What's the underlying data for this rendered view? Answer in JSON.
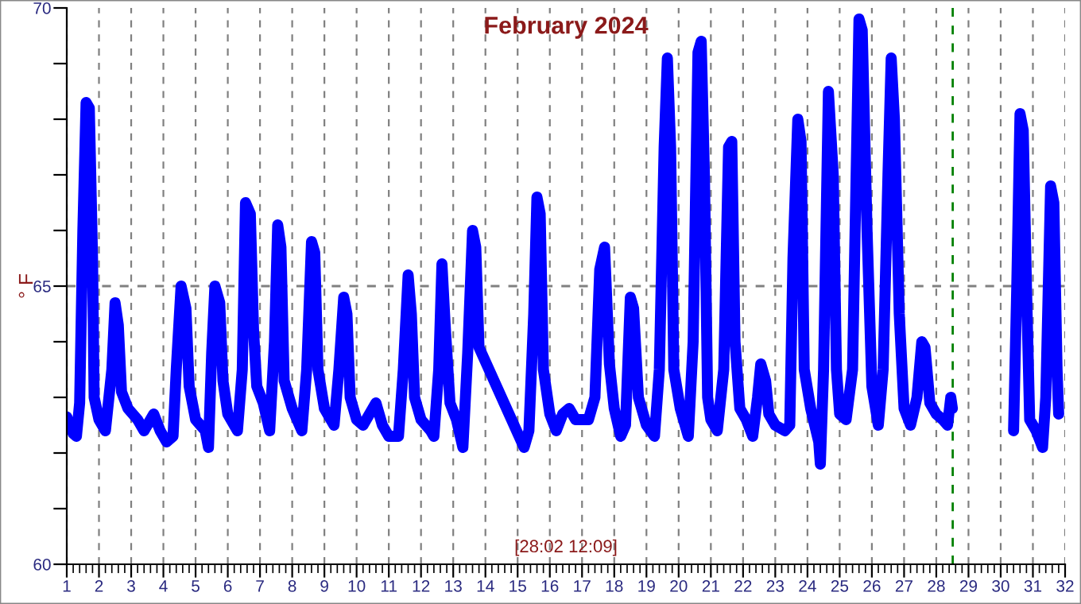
{
  "chart_data": {
    "type": "line",
    "title": "February 2024",
    "ylabel": "° F",
    "annotations": [
      "[28:02 12:09]"
    ],
    "series": [
      {
        "color": "#0000ff",
        "x": [
          1.0,
          1.2,
          1.3,
          1.4,
          1.5,
          1.6,
          1.7,
          1.8,
          1.85,
          2.0,
          2.2,
          2.4,
          2.5,
          2.6,
          2.7,
          2.9,
          3.2,
          3.4,
          3.7,
          3.9,
          4.1,
          4.3,
          4.4,
          4.55,
          4.7,
          4.8,
          5.0,
          5.3,
          5.4,
          5.5,
          5.6,
          5.75,
          5.85,
          6.0,
          6.3,
          6.45,
          6.55,
          6.7,
          6.8,
          6.9,
          7.1,
          7.3,
          7.45,
          7.55,
          7.65,
          7.75,
          8.0,
          8.3,
          8.45,
          8.6,
          8.7,
          8.8,
          9.0,
          9.3,
          9.45,
          9.6,
          9.7,
          9.8,
          10.0,
          10.2,
          10.4,
          10.6,
          10.8,
          11.0,
          11.3,
          11.45,
          11.6,
          11.7,
          11.8,
          12.0,
          12.3,
          12.4,
          12.55,
          12.65,
          12.75,
          12.9,
          13.1,
          13.3,
          13.45,
          13.6,
          13.7,
          13.8,
          15.2,
          15.35,
          15.5,
          15.6,
          15.7,
          15.8,
          16.0,
          16.2,
          16.4,
          16.6,
          16.8,
          17.2,
          17.4,
          17.55,
          17.7,
          17.85,
          18.0,
          18.2,
          18.35,
          18.5,
          18.6,
          18.75,
          19.0,
          19.25,
          19.4,
          19.55,
          19.65,
          19.75,
          19.85,
          20.05,
          20.3,
          20.45,
          20.6,
          20.7,
          20.8,
          20.9,
          21.0,
          21.2,
          21.4,
          21.55,
          21.65,
          21.75,
          21.9,
          22.1,
          22.3,
          22.45,
          22.55,
          22.7,
          22.8,
          23.0,
          23.3,
          23.45,
          23.55,
          23.7,
          23.8,
          23.9,
          24.1,
          24.35,
          24.4,
          24.5,
          24.65,
          24.8,
          24.9,
          25.0,
          25.2,
          25.4,
          25.6,
          25.7,
          25.85,
          26.0,
          26.2,
          26.35,
          26.5,
          26.6,
          26.7,
          26.85,
          27.0,
          27.2,
          27.4,
          27.55,
          27.65,
          27.8,
          28.0,
          28.2,
          28.35,
          28.45,
          28.5,
          29.5,
          30.4,
          30.5,
          30.6,
          30.7,
          30.8,
          30.9,
          31.1,
          31.3,
          31.4,
          31.55,
          31.65,
          31.75,
          31.8
        ],
        "values": [
          62.65,
          62.35,
          62.3,
          62.9,
          66.0,
          68.3,
          68.2,
          65.5,
          63.0,
          62.6,
          62.4,
          63.5,
          64.7,
          64.3,
          63.1,
          62.8,
          62.6,
          62.4,
          62.7,
          62.4,
          62.2,
          62.3,
          63.5,
          65.0,
          64.6,
          63.2,
          62.6,
          62.4,
          62.1,
          63.8,
          65.0,
          64.7,
          63.3,
          62.7,
          62.4,
          63.5,
          66.5,
          66.3,
          64.2,
          63.2,
          62.9,
          62.4,
          64.0,
          66.1,
          65.7,
          63.3,
          62.8,
          62.4,
          63.5,
          65.8,
          65.6,
          63.5,
          62.8,
          62.5,
          63.5,
          64.8,
          64.5,
          63.0,
          62.6,
          62.5,
          62.7,
          62.9,
          62.5,
          62.3,
          62.3,
          63.5,
          65.2,
          64.5,
          63.0,
          62.6,
          62.4,
          62.3,
          63.5,
          65.4,
          64.3,
          62.9,
          62.6,
          62.1,
          63.8,
          66.0,
          65.7,
          63.9,
          62.1,
          62.4,
          64.5,
          66.6,
          66.3,
          63.5,
          62.7,
          62.4,
          62.7,
          62.8,
          62.6,
          62.6,
          63.0,
          65.3,
          65.7,
          63.6,
          62.8,
          62.3,
          62.5,
          64.8,
          64.6,
          63.0,
          62.5,
          62.3,
          63.5,
          67.5,
          69.1,
          67.5,
          63.5,
          62.8,
          62.3,
          64.0,
          69.2,
          69.4,
          67.0,
          63.0,
          62.6,
          62.4,
          63.5,
          67.5,
          67.6,
          64.0,
          62.8,
          62.6,
          62.3,
          63.0,
          63.6,
          63.3,
          62.7,
          62.5,
          62.4,
          62.5,
          65.5,
          68.0,
          67.6,
          63.5,
          62.8,
          62.2,
          61.8,
          63.5,
          68.5,
          67.0,
          63.5,
          62.7,
          62.6,
          63.5,
          69.8,
          69.6,
          66.0,
          63.2,
          62.5,
          63.5,
          67.0,
          69.1,
          68.0,
          64.5,
          62.8,
          62.5,
          63.0,
          64.0,
          63.9,
          62.9,
          62.7,
          62.6,
          62.5,
          63.0,
          62.8,
          null,
          62.4,
          65.0,
          68.1,
          67.8,
          65.0,
          62.6,
          62.4,
          62.1,
          63.0,
          66.8,
          66.5,
          63.5,
          62.7
        ]
      }
    ],
    "xlim": [
      1,
      32
    ],
    "ylim": [
      60,
      70
    ],
    "xticks": [
      1,
      2,
      3,
      4,
      5,
      6,
      7,
      8,
      9,
      10,
      11,
      12,
      13,
      14,
      15,
      16,
      17,
      18,
      19,
      20,
      21,
      22,
      23,
      24,
      25,
      26,
      27,
      28,
      29,
      30,
      31,
      32
    ],
    "yticks": [
      60,
      {
        "value": 61,
        "label": null
      },
      {
        "value": 62,
        "label": null
      },
      {
        "value": 63,
        "label": null
      },
      {
        "value": 64,
        "label": null
      },
      65,
      {
        "value": 66,
        "label": null
      },
      {
        "value": 67,
        "label": null
      },
      {
        "value": 68,
        "label": null
      },
      {
        "value": 69,
        "label": null
      },
      70
    ],
    "grid": "x",
    "line_style": "solid",
    "marker": "none",
    "ref_lines": [
      {
        "axis": "y",
        "value": 65,
        "color": "#808080",
        "line_style": "dashed"
      },
      {
        "axis": "x",
        "value": 28.51,
        "color": "#008000",
        "line_style": "dashed"
      }
    ]
  }
}
